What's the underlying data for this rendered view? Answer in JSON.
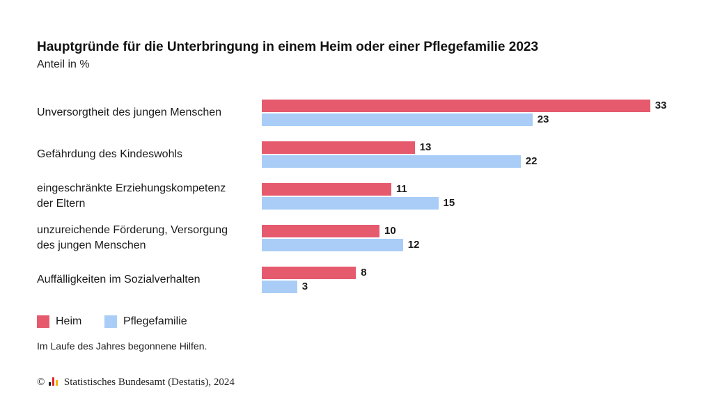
{
  "header": {
    "title": "Hauptgründe für die Unterbringung in einem Heim oder einer Pflegefamilie 2023",
    "subtitle": "Anteil in %"
  },
  "colors": {
    "heim": "#e65a6e",
    "pflegefamilie": "#a9cdf7"
  },
  "chart_data": {
    "type": "bar",
    "orientation": "horizontal",
    "title": "Hauptgründe für die Unterbringung in einem Heim oder einer Pflegefamilie 2023",
    "subtitle": "Anteil in %",
    "categories": [
      [
        "Unversorgtheit des jungen Menschen"
      ],
      [
        "Gefährdung des Kindeswohls"
      ],
      [
        "eingeschränkte Erziehungskompetenz",
        "der Eltern"
      ],
      [
        "unzureichende Förderung, Versorgung",
        "des jungen Menschen"
      ],
      [
        "Auffälligkeiten im Sozialverhalten"
      ]
    ],
    "series": [
      {
        "name": "Heim",
        "values": [
          33,
          13,
          11,
          10,
          8
        ]
      },
      {
        "name": "Pflegefamilie",
        "values": [
          23,
          22,
          15,
          12,
          3
        ]
      }
    ],
    "legend_position": "bottom-left",
    "grid": false
  },
  "legend": [
    {
      "label": "Heim",
      "icon": "red-square"
    },
    {
      "label": "Pflegefamilie",
      "icon": "light-blue-square"
    }
  ],
  "note": "Im Laufe des Jahres begonnene Hilfen.",
  "source": {
    "copyright_symbol": "©",
    "text": "Statistisches Bundesamt (Destatis), 2024",
    "logo_icon": "destatis-logo-icon"
  }
}
